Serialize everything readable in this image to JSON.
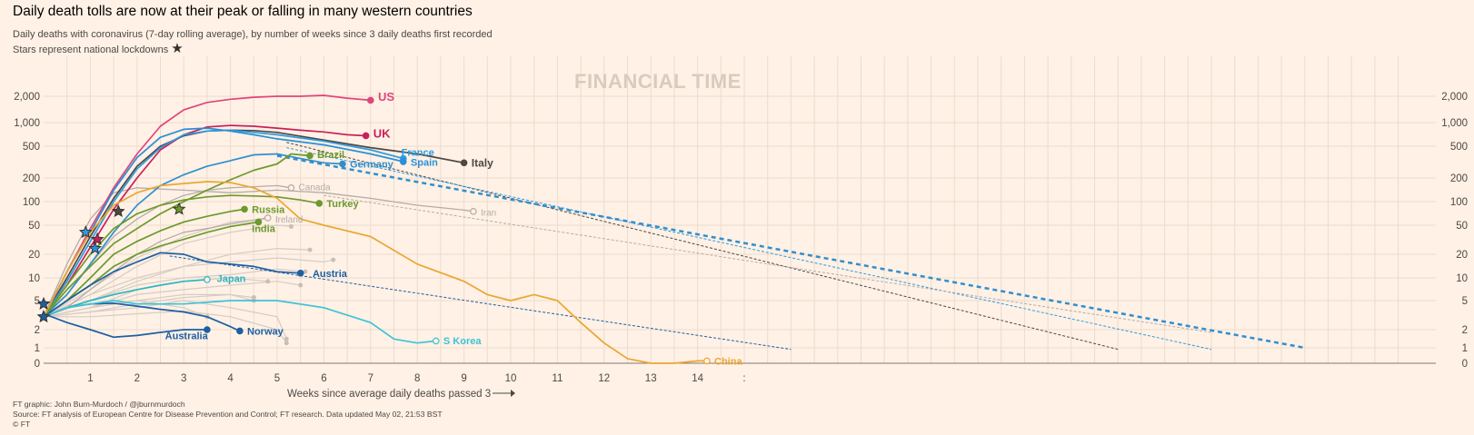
{
  "title": "Daily death tolls are now at their peak or falling in many western countries",
  "subtitle_line1": "Daily deaths with coronavirus (7-day rolling average), by number of weeks since 3 daily deaths first recorded",
  "subtitle_line2": "Stars represent national lockdowns",
  "watermark": "FINANCIAL TIME",
  "footer": {
    "credit": "FT graphic: John Burn-Murdoch / @jburnmurdoch",
    "source": "Source: FT analysis of European Centre for Disease Prevention and Control; FT research. Data updated May 02, 21:53 BST",
    "copyright": "© FT"
  },
  "chart_data": {
    "type": "line",
    "xlabel": "Weeks since average daily deaths passed 3",
    "x_ticks": [
      "1",
      "2",
      "3",
      "4",
      "5",
      "6",
      "7",
      "8",
      "9",
      "10",
      "11",
      "12",
      "13",
      "14",
      ":"
    ],
    "y_ticks": [
      "0",
      "1",
      "2",
      "5",
      "10",
      "20",
      "50",
      "100",
      "200",
      "500",
      "1,000",
      "2,000"
    ],
    "y_scale": "log",
    "xlim": [
      0,
      30
    ],
    "grid": true,
    "series": [
      {
        "name": "US",
        "color": "#e0457b",
        "bold": true,
        "points": [
          [
            0,
            3
          ],
          [
            0.5,
            12
          ],
          [
            1,
            45
          ],
          [
            1.5,
            150
          ],
          [
            2,
            400
          ],
          [
            2.5,
            900
          ],
          [
            3,
            1400
          ],
          [
            3.5,
            1700
          ],
          [
            4,
            1850
          ],
          [
            4.5,
            1950
          ],
          [
            5,
            2000
          ],
          [
            5.5,
            2000
          ],
          [
            6,
            2050
          ],
          [
            6.5,
            1900
          ],
          [
            7,
            1800
          ]
        ]
      },
      {
        "name": "UK",
        "color": "#c8205a",
        "bold": true,
        "points": [
          [
            0,
            3
          ],
          [
            0.5,
            8
          ],
          [
            1,
            25
          ],
          [
            1.5,
            80
          ],
          [
            2,
            200
          ],
          [
            2.5,
            450
          ],
          [
            3,
            700
          ],
          [
            3.5,
            880
          ],
          [
            4,
            920
          ],
          [
            4.5,
            900
          ],
          [
            5,
            850
          ],
          [
            5.5,
            800
          ],
          [
            6,
            760
          ],
          [
            6.5,
            700
          ],
          [
            6.9,
            680
          ]
        ]
      },
      {
        "name": "Italy",
        "color": "#4d4845",
        "bold": true,
        "points": [
          [
            0,
            3
          ],
          [
            0.5,
            10
          ],
          [
            1,
            35
          ],
          [
            1.5,
            110
          ],
          [
            2,
            280
          ],
          [
            2.5,
            500
          ],
          [
            3,
            680
          ],
          [
            3.5,
            780
          ],
          [
            4,
            800
          ],
          [
            4.5,
            790
          ],
          [
            5,
            750
          ],
          [
            6,
            600
          ],
          [
            7,
            480
          ],
          [
            8,
            400
          ],
          [
            9,
            310
          ]
        ],
        "trend": [
          [
            5.2,
            560
          ],
          [
            23,
            0.9
          ]
        ]
      },
      {
        "name": "France",
        "color": "#2e9be0",
        "bold": true,
        "points": [
          [
            0,
            3
          ],
          [
            0.5,
            9
          ],
          [
            1,
            30
          ],
          [
            1.5,
            100
          ],
          [
            2,
            260
          ],
          [
            2.5,
            480
          ],
          [
            3,
            700
          ],
          [
            3.5,
            780
          ],
          [
            4,
            800
          ],
          [
            4.5,
            750
          ],
          [
            5,
            700
          ],
          [
            6,
            580
          ],
          [
            7,
            450
          ],
          [
            7.7,
            350
          ]
        ],
        "trend": [
          [
            5.2,
            480
          ],
          [
            25,
            0.9
          ]
        ]
      },
      {
        "name": "Spain",
        "color": "#2a8fd6",
        "bold": true,
        "points": [
          [
            0,
            3
          ],
          [
            0.5,
            12
          ],
          [
            1,
            40
          ],
          [
            1.5,
            140
          ],
          [
            2,
            360
          ],
          [
            2.5,
            650
          ],
          [
            3,
            820
          ],
          [
            3.5,
            850
          ],
          [
            4,
            780
          ],
          [
            4.5,
            700
          ],
          [
            5,
            620
          ],
          [
            6,
            520
          ],
          [
            7,
            400
          ],
          [
            7.7,
            320
          ]
        ]
      },
      {
        "name": "Germany",
        "color": "#2e8fd0",
        "bold": true,
        "points": [
          [
            0,
            3
          ],
          [
            0.5,
            6
          ],
          [
            1,
            15
          ],
          [
            1.5,
            40
          ],
          [
            2,
            90
          ],
          [
            2.5,
            160
          ],
          [
            3,
            220
          ],
          [
            3.5,
            280
          ],
          [
            4,
            330
          ],
          [
            4.5,
            390
          ],
          [
            5,
            400
          ],
          [
            5.5,
            350
          ],
          [
            6,
            310
          ],
          [
            6.4,
            300
          ]
        ],
        "trend": [
          [
            5,
            380
          ],
          [
            27,
            1
          ]
        ]
      },
      {
        "name": "Brazil",
        "color": "#6c9a2d",
        "bold": true,
        "points": [
          [
            0,
            3
          ],
          [
            0.5,
            7
          ],
          [
            1,
            14
          ],
          [
            1.5,
            28
          ],
          [
            2,
            45
          ],
          [
            2.5,
            70
          ],
          [
            3,
            100
          ],
          [
            3.5,
            140
          ],
          [
            4,
            190
          ],
          [
            4.5,
            250
          ],
          [
            5,
            300
          ],
          [
            5.3,
            400
          ],
          [
            5.7,
            380
          ]
        ]
      },
      {
        "name": "Turkey",
        "color": "#6c9a2d",
        "bold": true,
        "points": [
          [
            0,
            3
          ],
          [
            0.5,
            8
          ],
          [
            1,
            20
          ],
          [
            1.5,
            45
          ],
          [
            2,
            70
          ],
          [
            2.5,
            90
          ],
          [
            3,
            105
          ],
          [
            3.5,
            115
          ],
          [
            4,
            120
          ],
          [
            4.5,
            118
          ],
          [
            5,
            115
          ],
          [
            5.5,
            105
          ],
          [
            5.9,
            95
          ]
        ]
      },
      {
        "name": "Russia",
        "color": "#6c9a2d",
        "bold": true,
        "points": [
          [
            0,
            3
          ],
          [
            0.5,
            5
          ],
          [
            1,
            10
          ],
          [
            1.5,
            20
          ],
          [
            2,
            30
          ],
          [
            2.5,
            42
          ],
          [
            3,
            55
          ],
          [
            3.5,
            65
          ],
          [
            4,
            75
          ],
          [
            4.3,
            80
          ]
        ]
      },
      {
        "name": "India",
        "color": "#6c9a2d",
        "bold": true,
        "points": [
          [
            0,
            3
          ],
          [
            0.5,
            5
          ],
          [
            1,
            8
          ],
          [
            1.5,
            14
          ],
          [
            2,
            20
          ],
          [
            2.5,
            26
          ],
          [
            3,
            32
          ],
          [
            3.5,
            40
          ],
          [
            4,
            48
          ],
          [
            4.6,
            55
          ]
        ]
      },
      {
        "name": "Canada",
        "color": "#b5aca6",
        "bold": false,
        "points": [
          [
            0,
            3
          ],
          [
            0.5,
            6
          ],
          [
            1,
            15
          ],
          [
            1.5,
            35
          ],
          [
            2,
            60
          ],
          [
            2.5,
            90
          ],
          [
            3,
            120
          ],
          [
            3.5,
            140
          ],
          [
            4,
            150
          ],
          [
            4.5,
            155
          ],
          [
            5,
            160
          ],
          [
            5.3,
            150
          ]
        ]
      },
      {
        "name": "Iran",
        "color": "#b5aca6",
        "bold": false,
        "points": [
          [
            0,
            3
          ],
          [
            0.5,
            15
          ],
          [
            1,
            60
          ],
          [
            1.5,
            130
          ],
          [
            2,
            150
          ],
          [
            2.5,
            145
          ],
          [
            3,
            140
          ],
          [
            4,
            130
          ],
          [
            5,
            140
          ],
          [
            6,
            130
          ],
          [
            7,
            110
          ],
          [
            8,
            90
          ],
          [
            9,
            78
          ],
          [
            9.2,
            75
          ]
        ],
        "trend": [
          [
            6,
            120
          ],
          [
            25,
            1.8
          ]
        ]
      },
      {
        "name": "Ireland",
        "color": "#b5aca6",
        "bold": false,
        "points": [
          [
            0,
            3
          ],
          [
            0.5,
            4
          ],
          [
            1,
            7
          ],
          [
            1.5,
            12
          ],
          [
            2,
            20
          ],
          [
            2.5,
            30
          ],
          [
            3,
            40
          ],
          [
            3.5,
            45
          ],
          [
            4,
            52
          ],
          [
            4.5,
            58
          ],
          [
            4.8,
            62
          ]
        ]
      },
      {
        "name": "Austria",
        "color": "#1d5fa3",
        "bold": true,
        "points": [
          [
            0,
            3
          ],
          [
            0.5,
            5
          ],
          [
            1,
            8
          ],
          [
            1.5,
            12
          ],
          [
            2,
            16
          ],
          [
            2.5,
            21
          ],
          [
            3,
            20
          ],
          [
            3.5,
            16
          ],
          [
            4,
            15
          ],
          [
            4.5,
            14
          ],
          [
            5,
            12
          ],
          [
            5.5,
            11.5
          ]
        ],
        "trend": [
          [
            2.7,
            19
          ],
          [
            16,
            0.9
          ]
        ]
      },
      {
        "name": "Japan",
        "color": "#2fb5c1",
        "bold": true,
        "points": [
          [
            0,
            3
          ],
          [
            0.5,
            4
          ],
          [
            1,
            5
          ],
          [
            1.5,
            6
          ],
          [
            2,
            7
          ],
          [
            2.5,
            8
          ],
          [
            3,
            9
          ],
          [
            3.5,
            9.5
          ]
        ]
      },
      {
        "name": "Australia",
        "color": "#1d5fa3",
        "bold": true,
        "points": [
          [
            0,
            3.3
          ],
          [
            0.5,
            2.5
          ],
          [
            1,
            2
          ],
          [
            1.5,
            1.5
          ],
          [
            2,
            1.6
          ],
          [
            2.5,
            1.8
          ],
          [
            3,
            2
          ],
          [
            3.5,
            2
          ]
        ]
      },
      {
        "name": "Norway",
        "color": "#1d5fa3",
        "bold": true,
        "points": [
          [
            0,
            3
          ],
          [
            0.5,
            4
          ],
          [
            1,
            4.5
          ],
          [
            1.5,
            4.6
          ],
          [
            2,
            4.2
          ],
          [
            2.5,
            3.8
          ],
          [
            3,
            3.5
          ],
          [
            3.5,
            3
          ],
          [
            4,
            2.2
          ],
          [
            4.2,
            1.9
          ]
        ]
      },
      {
        "name": "S Korea",
        "color": "#3cc3d8",
        "bold": true,
        "points": [
          [
            0,
            3
          ],
          [
            0.5,
            4
          ],
          [
            1,
            4.5
          ],
          [
            1.5,
            5
          ],
          [
            2,
            4.5
          ],
          [
            3,
            4.5
          ],
          [
            4,
            5
          ],
          [
            5,
            5
          ],
          [
            6,
            4
          ],
          [
            7,
            2.5
          ],
          [
            7.5,
            1.4
          ],
          [
            8,
            1.2
          ],
          [
            8.4,
            1.3
          ]
        ]
      },
      {
        "name": "China",
        "color": "#eba631",
        "bold": true,
        "points": [
          [
            0,
            3
          ],
          [
            0.5,
            12
          ],
          [
            1,
            40
          ],
          [
            1.5,
            90
          ],
          [
            2,
            130
          ],
          [
            2.5,
            160
          ],
          [
            3,
            170
          ],
          [
            3.5,
            180
          ],
          [
            4,
            175
          ],
          [
            4.5,
            150
          ],
          [
            5,
            110
          ],
          [
            5.5,
            60
          ],
          [
            6,
            50
          ],
          [
            7,
            35
          ],
          [
            8,
            15
          ],
          [
            9,
            9
          ],
          [
            9.5,
            6
          ],
          [
            10,
            5
          ],
          [
            10.5,
            6
          ],
          [
            11,
            5
          ],
          [
            11.5,
            2.5
          ],
          [
            12,
            1.2
          ],
          [
            12.5,
            0.3
          ],
          [
            13,
            0
          ],
          [
            13.5,
            0
          ],
          [
            14,
            0.15
          ],
          [
            14.2,
            0.15
          ]
        ]
      }
    ],
    "stars": [
      {
        "country": "France",
        "x": 0.9,
        "y": 40,
        "color": "#2e9be0"
      },
      {
        "country": "Spain",
        "x": 1.1,
        "y": 24,
        "color": "#2a8fd6"
      },
      {
        "country": "UK",
        "x": 1.15,
        "y": 32,
        "color": "#c8205a"
      },
      {
        "country": "Italy",
        "x": 1.6,
        "y": 75,
        "color": "#4d4845"
      },
      {
        "country": "Brazil",
        "x": 2.9,
        "y": 80,
        "color": "#6c9a2d"
      },
      {
        "country": "Origin",
        "x": 0,
        "y": 4.5,
        "color": "#1d5fa3"
      },
      {
        "country": "Origin",
        "x": 0,
        "y": 3,
        "color": "#1d5fa3"
      }
    ]
  }
}
